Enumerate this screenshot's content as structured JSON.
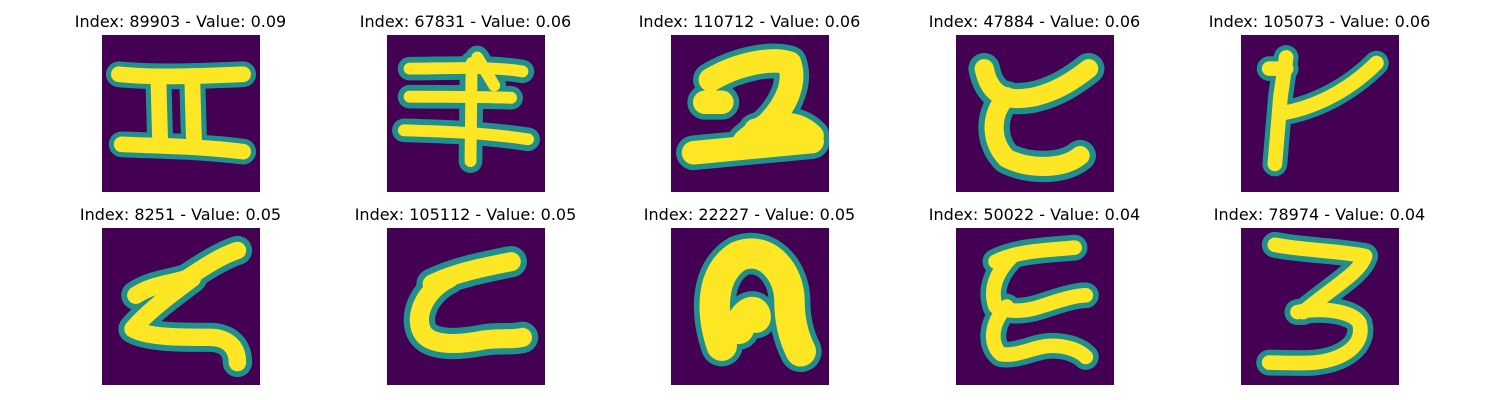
{
  "colors": {
    "background": "#440154",
    "edge": "#21908d",
    "edge_light": "#5ec962",
    "ink": "#fde725"
  },
  "samples": [
    {
      "title": "Index: 89903 - Value: 0.09",
      "glyph": "H-shape-icon"
    },
    {
      "title": "Index: 67831 - Value: 0.06",
      "glyph": "double-cross-icon"
    },
    {
      "title": "Index: 110712 - Value: 0.06",
      "glyph": "z-shape-icon"
    },
    {
      "title": "Index: 47884 - Value: 0.06",
      "glyph": "c-shape-icon"
    },
    {
      "title": "Index: 105073 - Value: 0.06",
      "glyph": "y-shape-icon"
    },
    {
      "title": "Index: 8251 - Value: 0.05",
      "glyph": "zigzag-z-icon"
    },
    {
      "title": "Index: 105112 - Value: 0.05",
      "glyph": "c-open-icon"
    },
    {
      "title": "Index: 22227 - Value: 0.05",
      "glyph": "arch-shape-icon"
    },
    {
      "title": "Index: 50022 - Value: 0.04",
      "glyph": "e-shape-icon"
    },
    {
      "title": "Index: 78974 - Value: 0.04",
      "glyph": "three-shape-icon"
    }
  ]
}
